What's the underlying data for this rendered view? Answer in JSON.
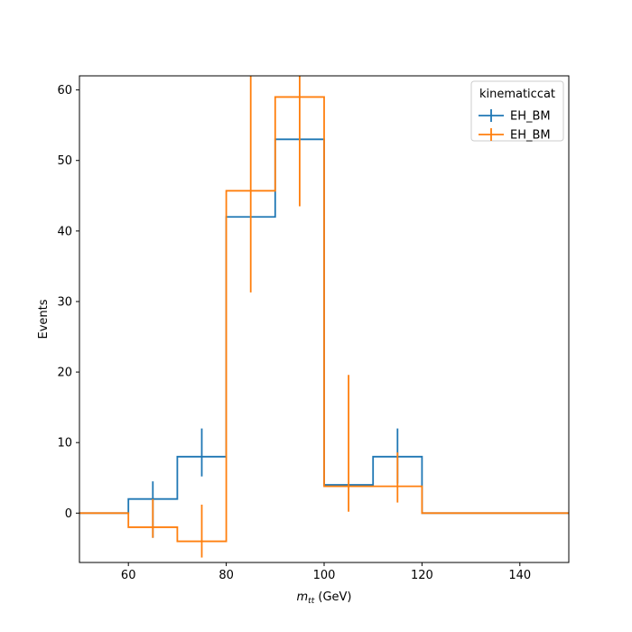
{
  "chart_data": {
    "type": "histogram",
    "xlabel": "m_{tt} (GeV)",
    "xlabel_main": "m",
    "xlabel_sub": "tt",
    "xlabel_unit": " (GeV)",
    "ylabel": "Events",
    "xlim": [
      50,
      150
    ],
    "ylim": [
      -7,
      62
    ],
    "xticks": [
      60,
      80,
      100,
      120,
      140
    ],
    "yticks": [
      0,
      10,
      20,
      30,
      40,
      50,
      60
    ],
    "grid": false,
    "legend": {
      "title": "kinematiccat",
      "placement": "top-right",
      "entries": [
        "EH_BM",
        "EH_BM"
      ]
    },
    "bin_edges": [
      50,
      60,
      70,
      80,
      90,
      100,
      110,
      120,
      130,
      140,
      150
    ],
    "series": [
      {
        "name": "EH_BM",
        "color": "#1f77b4",
        "values": [
          0,
          2,
          8,
          42,
          53,
          4,
          8,
          0,
          0,
          0
        ],
        "errors": [
          null,
          {
            "x": 65,
            "low": -3.5,
            "high": 4.5
          },
          {
            "x": 75,
            "low": 5.2,
            "high": 12
          },
          null,
          null,
          null,
          {
            "x": 115,
            "low": 4.2,
            "high": 12
          },
          null,
          null,
          null
        ]
      },
      {
        "name": "EH_BM",
        "color": "#ff7f0e",
        "values": [
          0,
          -2,
          -4,
          45.7,
          59,
          3.8,
          3.8,
          0,
          0,
          0
        ],
        "errors": [
          null,
          {
            "x": 65,
            "low": -3.5,
            "high": 2
          },
          {
            "x": 75,
            "low": -6.3,
            "high": 1.2
          },
          {
            "x": 85,
            "low": 31.3,
            "high": 62
          },
          {
            "x": 95,
            "low": 43.5,
            "high": 62
          },
          {
            "x": 105,
            "low": 0.2,
            "high": 19.6
          },
          {
            "x": 115,
            "low": 1.5,
            "high": 8.6
          },
          null,
          null,
          null
        ]
      }
    ]
  }
}
